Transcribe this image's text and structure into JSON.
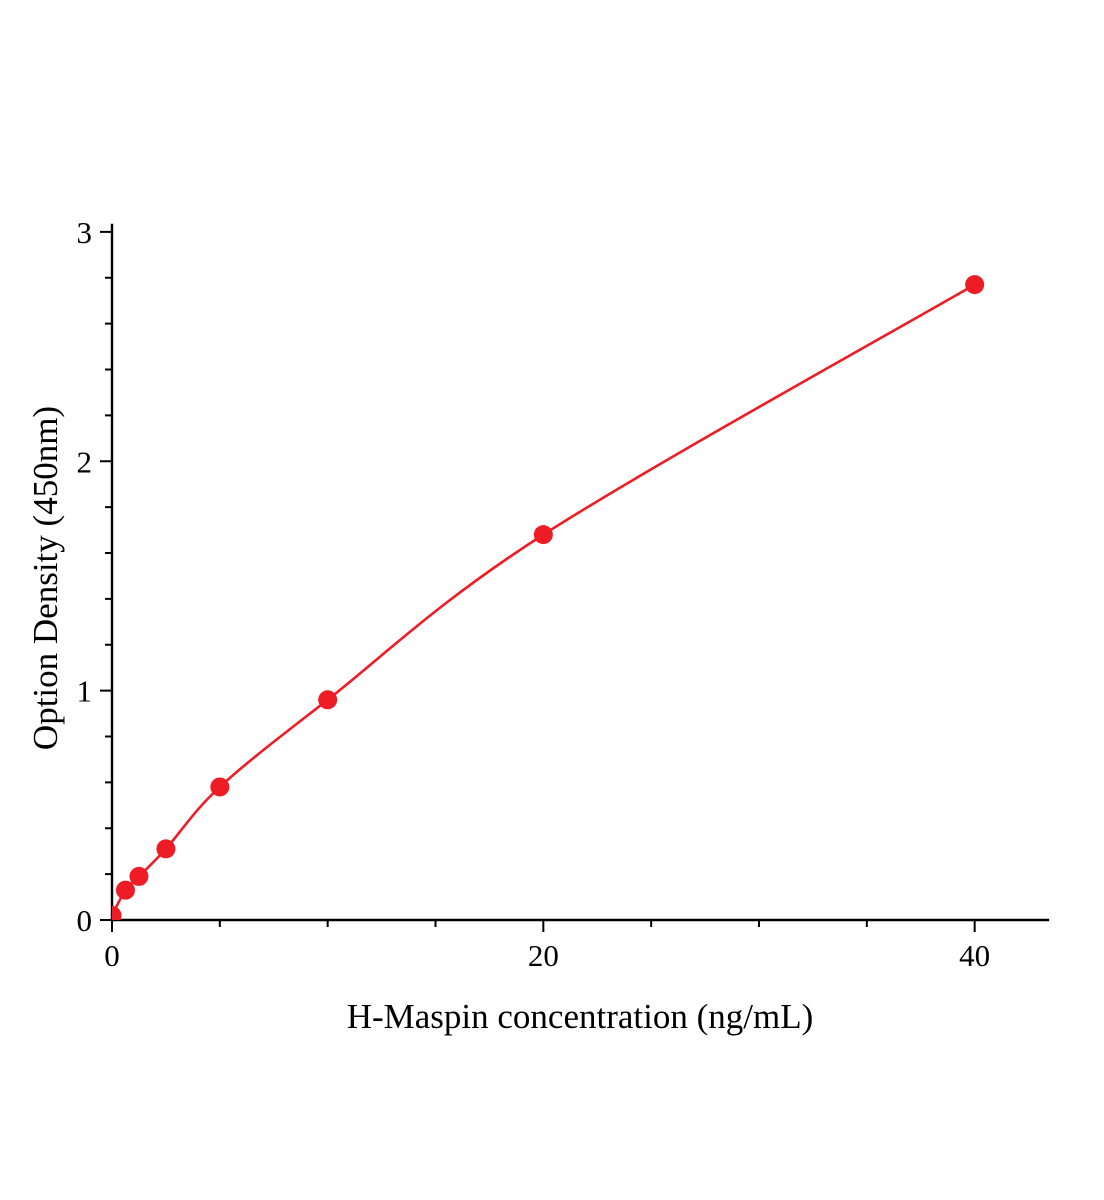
{
  "chart_data": {
    "type": "line",
    "title": "",
    "xlabel": "H-Maspin concentration (ng/mL)",
    "ylabel": "Option Density (450nm)",
    "x": [
      0,
      0.625,
      1.25,
      2.5,
      5,
      10,
      20,
      40
    ],
    "values": [
      0.02,
      0.13,
      0.19,
      0.31,
      0.58,
      0.96,
      1.68,
      2.77
    ],
    "xlim": [
      0,
      43.4
    ],
    "ylim": [
      0,
      3.03
    ],
    "x_major_ticks": [
      0,
      20,
      40
    ],
    "x_minor_step": 5,
    "y_major_ticks": [
      0,
      1,
      2,
      3
    ],
    "y_minor_step": 0.2,
    "line_color": "#ee1c25",
    "marker": "circle",
    "marker_size": 9.5,
    "grid": false,
    "legend": "none"
  }
}
